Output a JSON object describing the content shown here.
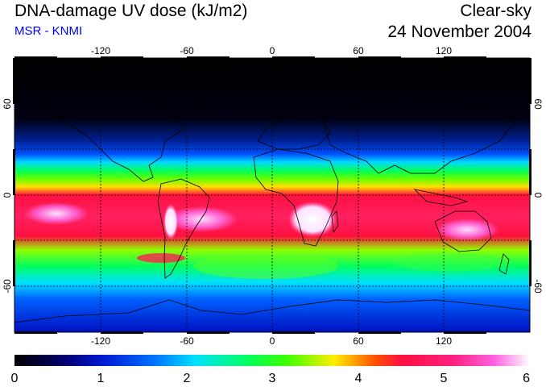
{
  "header": {
    "title": "DNA-damage UV dose (kJ/m2)",
    "subtitle": "MSR - KNMI",
    "subtitle_color": "#0000ff",
    "condition": "Clear-sky",
    "date": "24 November 2004"
  },
  "map": {
    "projection": "equirectangular",
    "lon_ticks": [
      -120,
      -60,
      0,
      60,
      120
    ],
    "lon_labels": [
      "-120",
      "-60",
      "0",
      "60",
      "120"
    ],
    "lat_ticks": [
      60,
      0,
      -60
    ],
    "lat_labels": [
      "60",
      "0",
      "-60"
    ],
    "grid_style": "dotted",
    "lon_range": [
      -180,
      180
    ],
    "lat_range": [
      -90,
      90
    ]
  },
  "colorbar": {
    "min": 0,
    "max": 6,
    "tick_labels": [
      "0",
      "1",
      "2",
      "3",
      "4",
      "5",
      "6"
    ],
    "colors": [
      "#000000",
      "#0018d0",
      "#00e0ff",
      "#00ff20",
      "#ffee00",
      "#ff1040",
      "#ff40e0",
      "#ffffff"
    ]
  }
}
